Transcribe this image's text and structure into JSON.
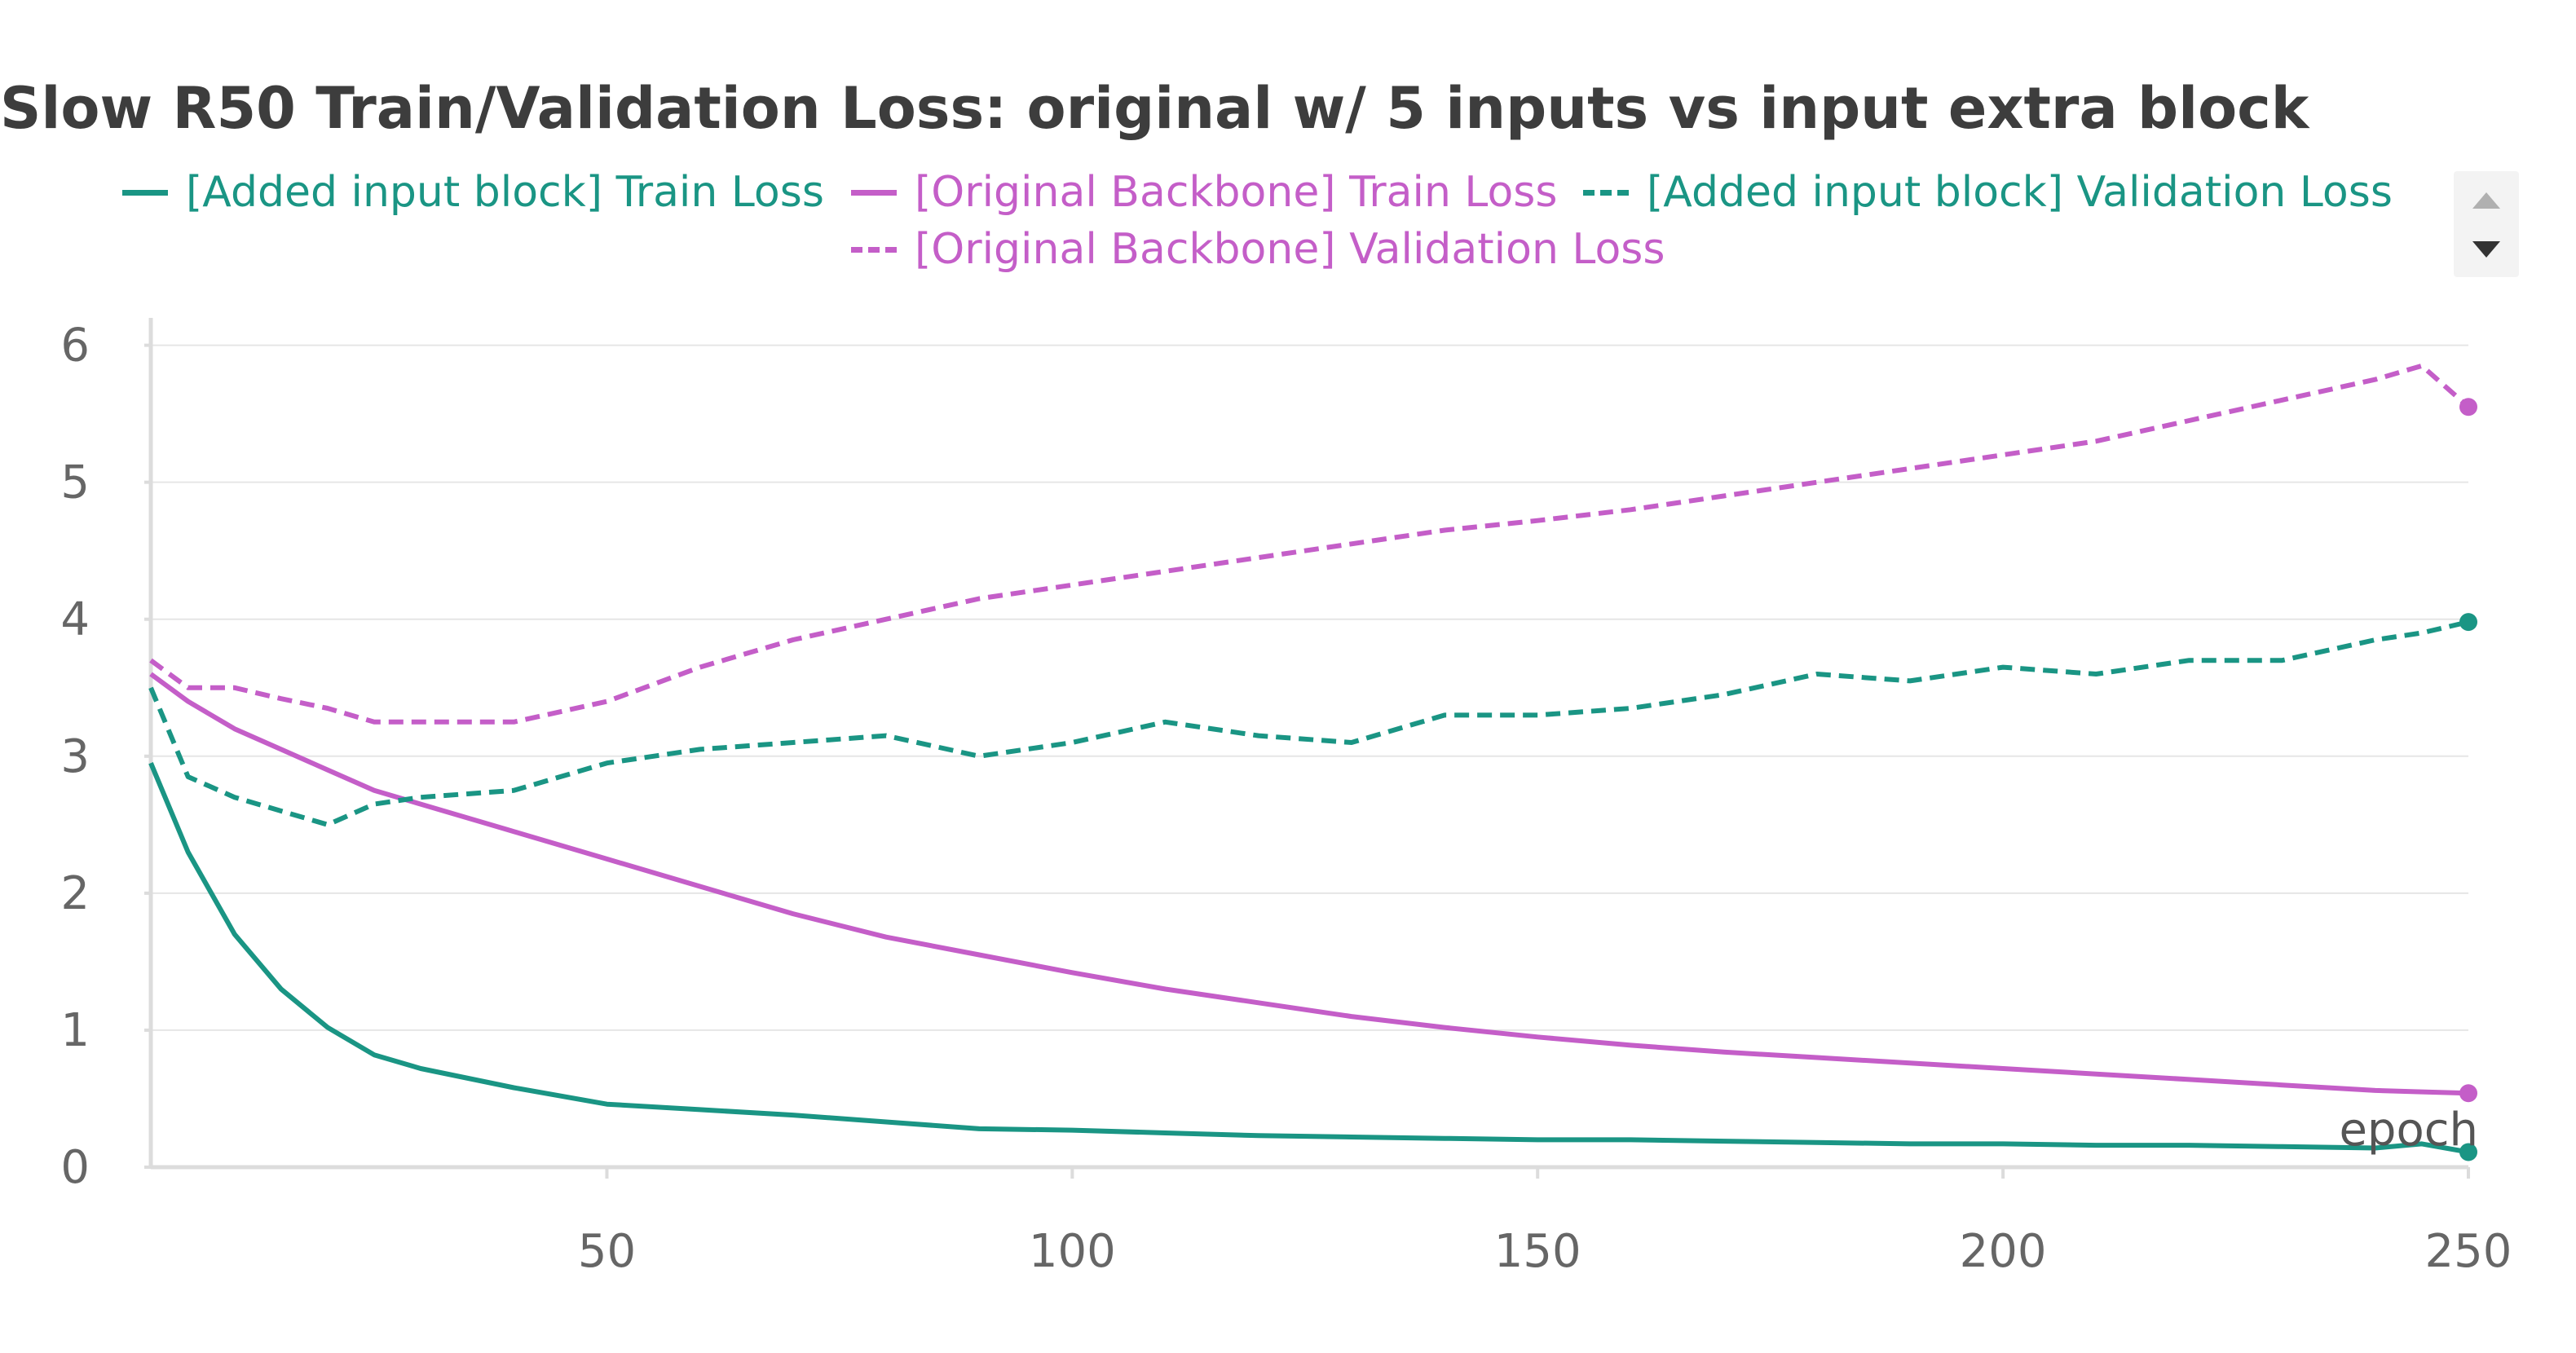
{
  "chart_data": {
    "type": "line",
    "title": "Slow R50 Train/Validation Loss: original w/ 5 inputs vs input extra block",
    "xlabel": "epoch",
    "ylabel": "",
    "xlim": [
      1,
      250
    ],
    "ylim": [
      0,
      6.2
    ],
    "x_ticks": [
      50,
      100,
      150,
      200,
      250
    ],
    "y_ticks": [
      0,
      1,
      2,
      3,
      4,
      5,
      6
    ],
    "grid": true,
    "legend_position": "top",
    "x": [
      1,
      5,
      10,
      15,
      20,
      25,
      30,
      40,
      50,
      60,
      70,
      80,
      90,
      100,
      110,
      120,
      130,
      140,
      150,
      160,
      170,
      180,
      190,
      200,
      210,
      220,
      230,
      240,
      245,
      250
    ],
    "series": [
      {
        "name": "[Added input block] Train Loss",
        "color": "#1a9584",
        "style": "solid",
        "values": [
          2.95,
          2.3,
          1.7,
          1.3,
          1.02,
          0.82,
          0.72,
          0.58,
          0.46,
          0.42,
          0.38,
          0.33,
          0.28,
          0.27,
          0.25,
          0.23,
          0.22,
          0.21,
          0.2,
          0.2,
          0.19,
          0.18,
          0.17,
          0.17,
          0.16,
          0.16,
          0.15,
          0.14,
          0.17,
          0.11
        ]
      },
      {
        "name": "[Original Backbone] Train Loss",
        "color": "#c45ec8",
        "style": "solid",
        "values": [
          3.6,
          3.4,
          3.2,
          3.05,
          2.9,
          2.75,
          2.65,
          2.45,
          2.25,
          2.05,
          1.85,
          1.68,
          1.55,
          1.42,
          1.3,
          1.2,
          1.1,
          1.02,
          0.95,
          0.89,
          0.84,
          0.8,
          0.76,
          0.72,
          0.68,
          0.64,
          0.6,
          0.56,
          0.55,
          0.54
        ]
      },
      {
        "name": "[Added input block] Validation Loss",
        "color": "#1a9584",
        "style": "dashed",
        "values": [
          3.5,
          2.85,
          2.7,
          2.6,
          2.5,
          2.65,
          2.7,
          2.75,
          2.95,
          3.05,
          3.1,
          3.15,
          3.0,
          3.1,
          3.25,
          3.15,
          3.1,
          3.3,
          3.3,
          3.35,
          3.45,
          3.6,
          3.55,
          3.65,
          3.6,
          3.7,
          3.7,
          3.85,
          3.9,
          3.98
        ]
      },
      {
        "name": "[Original Backbone] Validation Loss",
        "color": "#c45ec8",
        "style": "dashed",
        "values": [
          3.7,
          3.5,
          3.5,
          3.42,
          3.35,
          3.25,
          3.25,
          3.25,
          3.4,
          3.65,
          3.85,
          4.0,
          4.15,
          4.25,
          4.35,
          4.45,
          4.55,
          4.65,
          4.72,
          4.8,
          4.9,
          5.0,
          5.1,
          5.2,
          5.3,
          5.45,
          5.6,
          5.75,
          5.85,
          5.55
        ]
      }
    ]
  }
}
